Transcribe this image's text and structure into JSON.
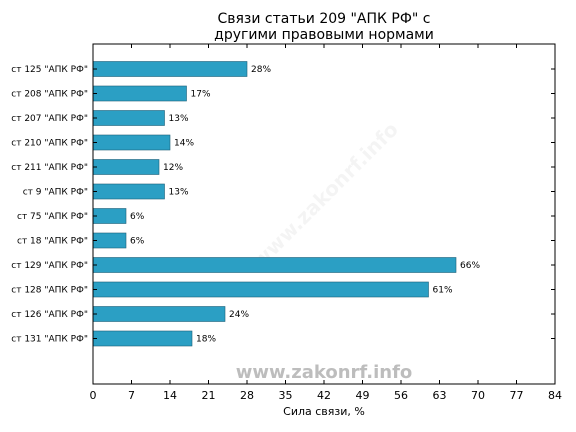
{
  "watermark": "www.zakonrf.info",
  "chart_data": {
    "type": "bar",
    "orientation": "horizontal",
    "title_lines": [
      "Связи статьи 209 \"АПК РФ\" с",
      "другими правовыми нормами"
    ],
    "xlabel": "Сила связи, %",
    "ylabel": "",
    "xlim": [
      0,
      84
    ],
    "xticks": [
      0,
      7,
      14,
      21,
      28,
      35,
      42,
      49,
      56,
      63,
      70,
      77,
      84
    ],
    "grid": false,
    "bar_color": "#2b9fc4",
    "categories": [
      "ст 125 \"АПК РФ\"",
      "ст 208 \"АПК РФ\"",
      "ст 207 \"АПК РФ\"",
      "ст 210 \"АПК РФ\"",
      "ст 211 \"АПК РФ\"",
      "ст 9 \"АПК РФ\"",
      "ст 75 \"АПК РФ\"",
      "ст 18 \"АПК РФ\"",
      "ст 129 \"АПК РФ\"",
      "ст 128 \"АПК РФ\"",
      "ст 126 \"АПК РФ\"",
      "ст 131 \"АПК РФ\""
    ],
    "values": [
      28,
      17,
      13,
      14,
      12,
      13,
      6,
      6,
      66,
      61,
      24,
      18
    ],
    "value_labels": [
      "28%",
      "17%",
      "13%",
      "14%",
      "12%",
      "13%",
      "6%",
      "6%",
      "66%",
      "61%",
      "24%",
      "18%"
    ]
  }
}
